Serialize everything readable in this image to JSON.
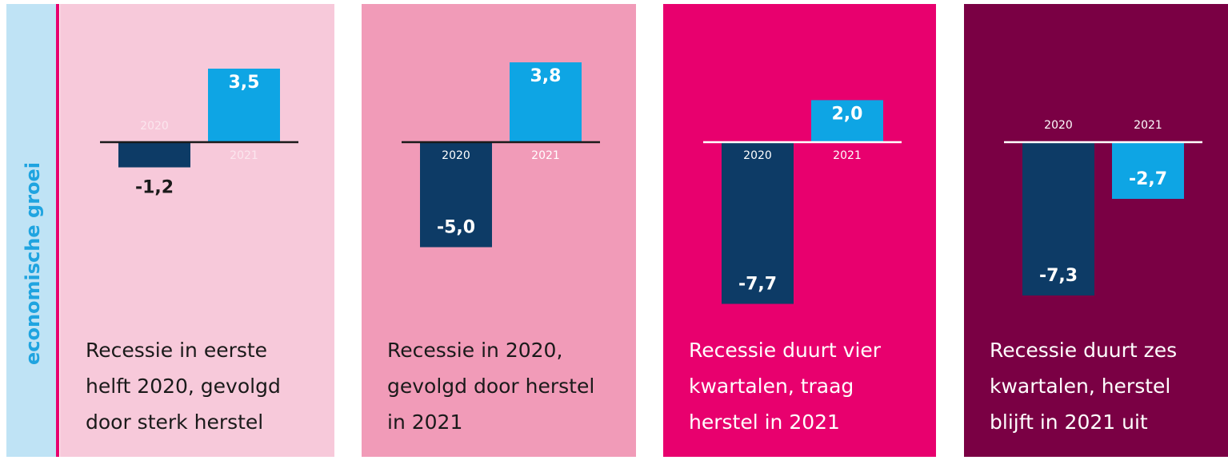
{
  "y_label": "economische groei",
  "chart_data": [
    {
      "type": "bar",
      "title": [
        "Recessie in eerste",
        "helft 2020, gevolgd",
        "door sterk herstel"
      ],
      "categories": [
        "2020",
        "2021"
      ],
      "values": [
        -1.2,
        3.5
      ],
      "value_labels": [
        "-1,2",
        "3,5"
      ],
      "colors": [
        "#0d3b66",
        "#0ea5e4"
      ],
      "background": "#f7c9da"
    },
    {
      "type": "bar",
      "title": [
        "Recessie in 2020,",
        "gevolgd door herstel",
        "in 2021"
      ],
      "categories": [
        "2020",
        "2021"
      ],
      "values": [
        -5.0,
        3.8
      ],
      "value_labels": [
        "-5,0",
        "3,8"
      ],
      "colors": [
        "#0d3b66",
        "#0ea5e4"
      ],
      "background": "#f19bb8"
    },
    {
      "type": "bar",
      "title": [
        "Recessie duurt vier",
        "kwartalen, traag",
        "herstel in 2021"
      ],
      "categories": [
        "2020",
        "2021"
      ],
      "values": [
        -7.7,
        2.0
      ],
      "value_labels": [
        "-7,7",
        "2,0"
      ],
      "colors": [
        "#0d3b66",
        "#0ea5e4"
      ],
      "background": "#e8006e"
    },
    {
      "type": "bar",
      "title": [
        "Recessie duurt zes",
        "kwartalen, herstel",
        "blijft in 2021 uit"
      ],
      "categories": [
        "2020",
        "2021"
      ],
      "values": [
        -7.3,
        -2.7
      ],
      "value_labels": [
        "-7,3",
        "-2,7"
      ],
      "colors": [
        "#0d3b66",
        "#0ea5e4"
      ],
      "background": "#7a0044"
    }
  ]
}
